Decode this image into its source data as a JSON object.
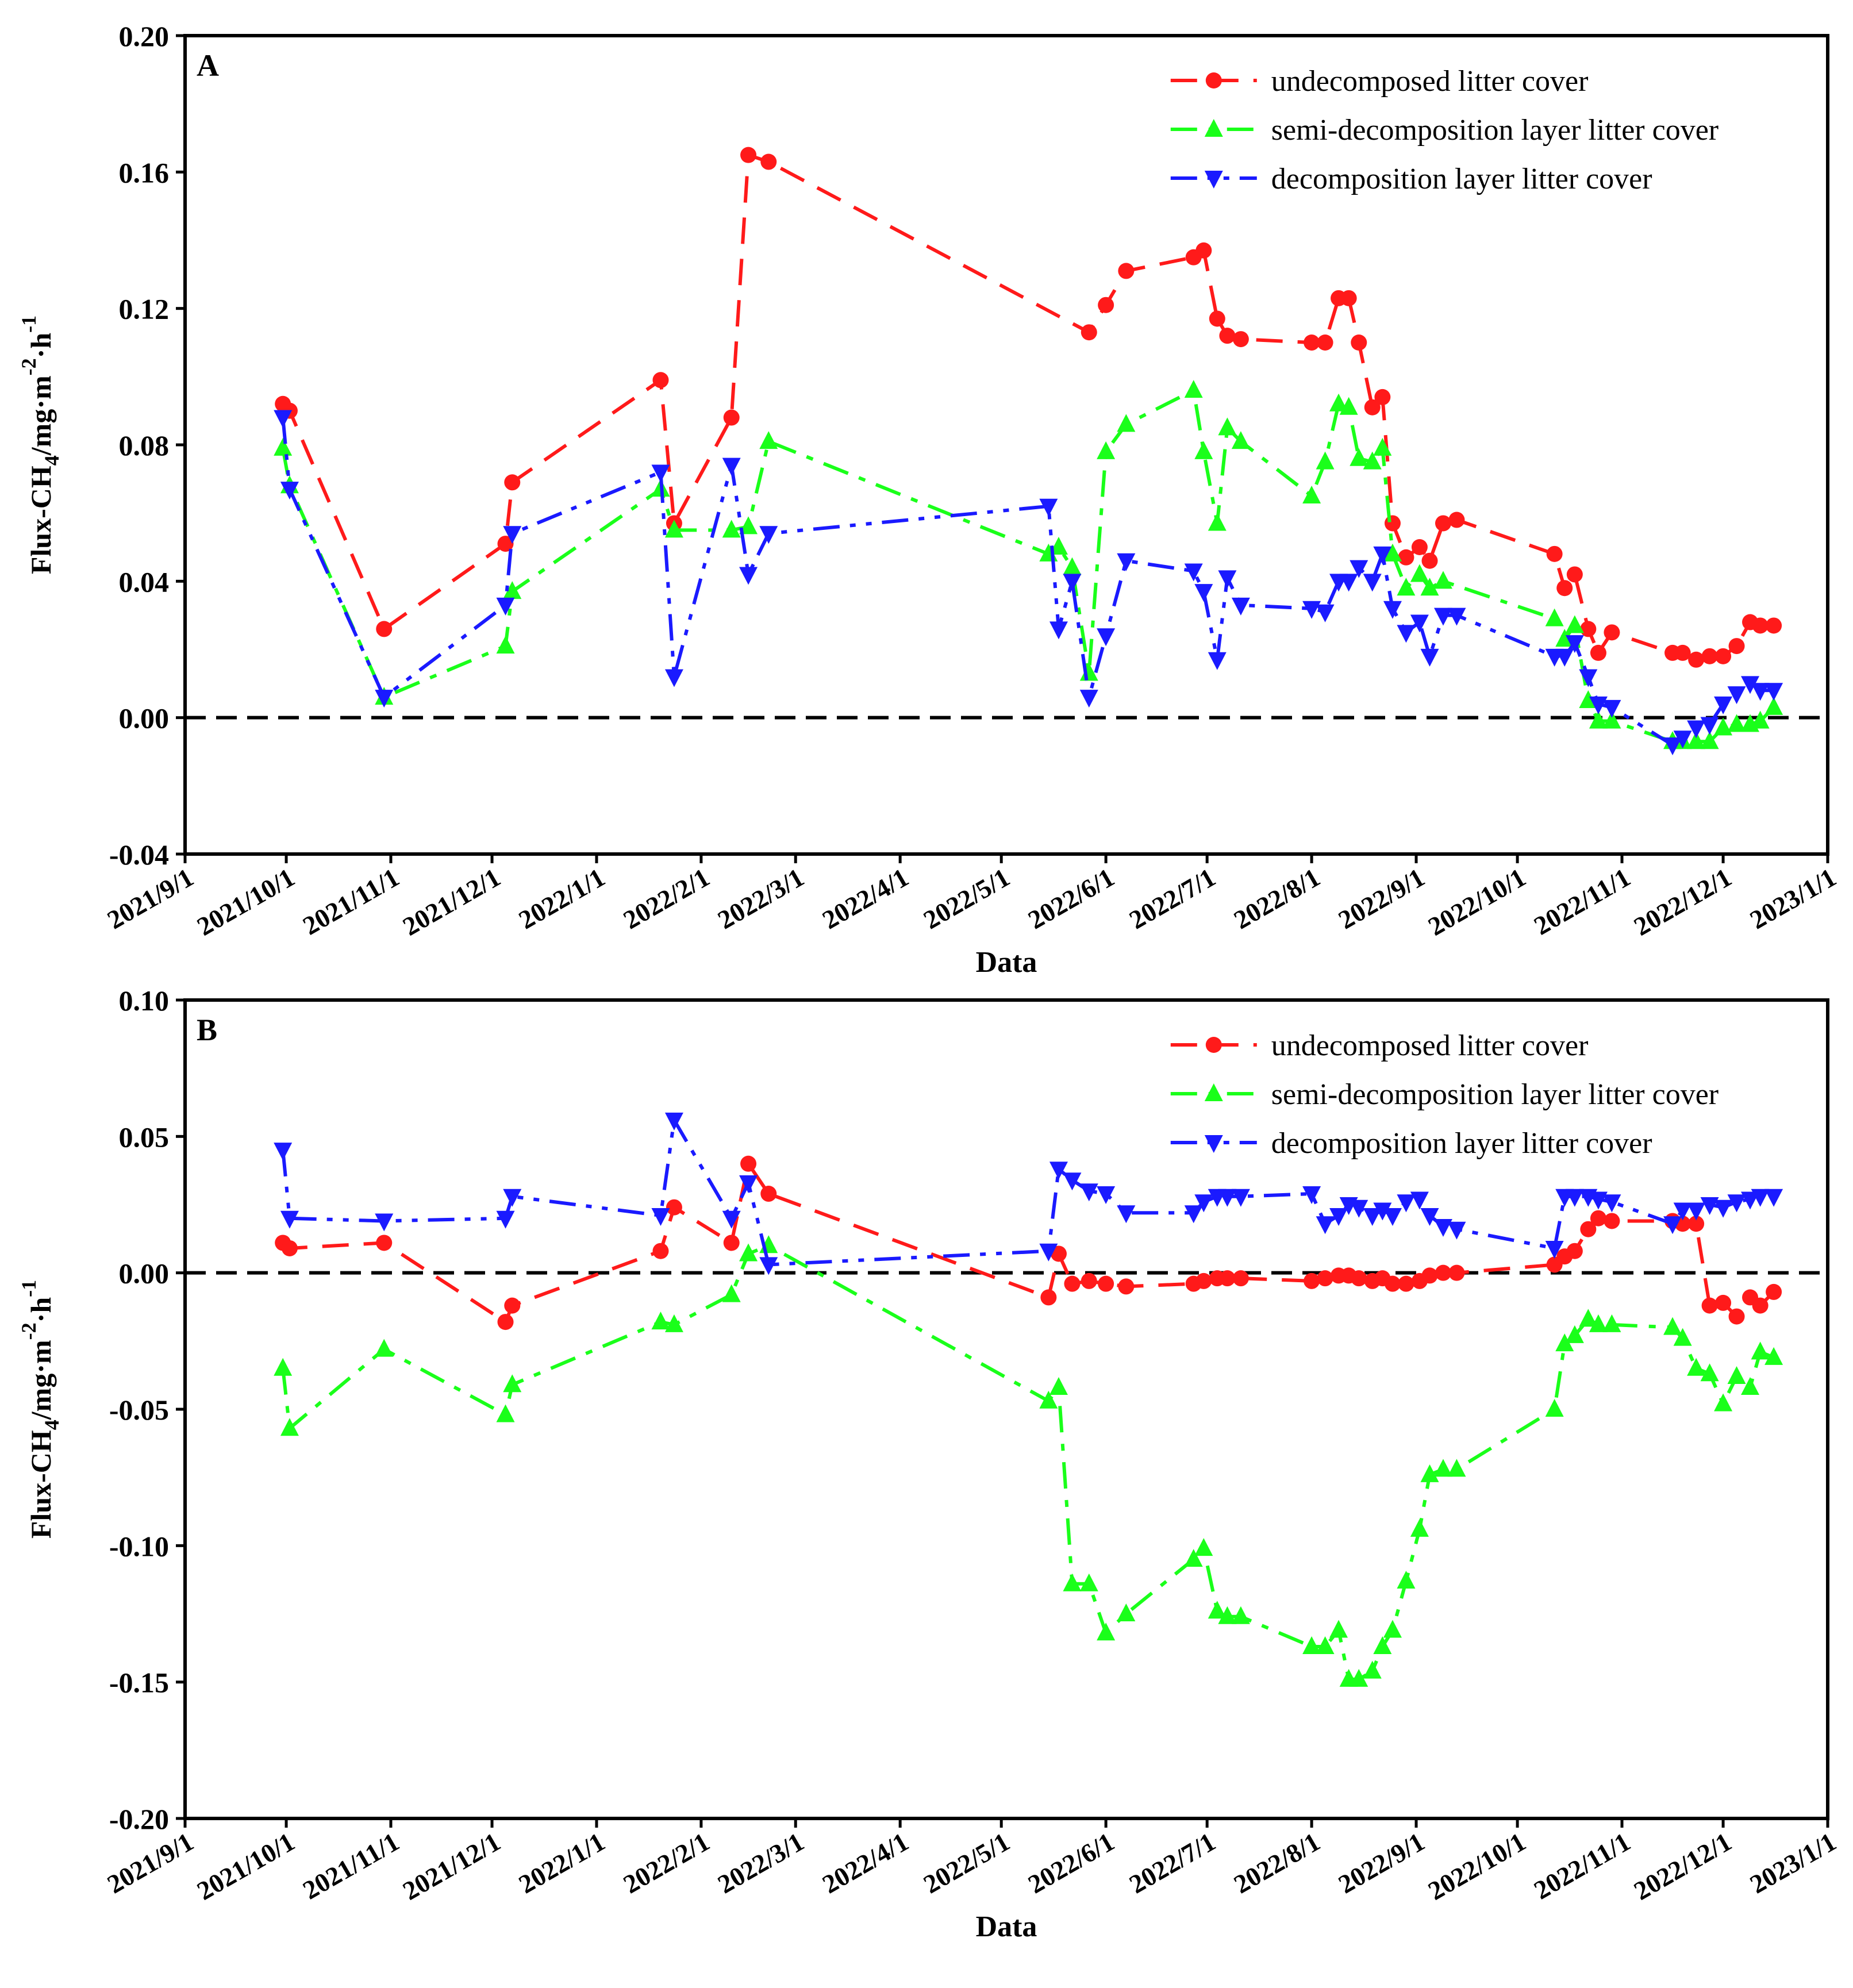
{
  "chart_data": [
    {
      "type": "line",
      "panel_label": "A",
      "xlabel": "Data",
      "ylabel": "Flux-CH4/mg·m-2·h-1",
      "ylabel_parts": {
        "prefix": "Flux-CH",
        "sub": "4",
        "mid": "/mg·m",
        "sup1": "-2",
        "dot": "·h",
        "sup2": "-1"
      },
      "ylim": [
        -0.04,
        0.2
      ],
      "yticks": [
        -0.04,
        0.0,
        0.04,
        0.08,
        0.12,
        0.16,
        0.2
      ],
      "ytick_labels": [
        "-0.04",
        "0.00",
        "0.04",
        "0.08",
        "0.12",
        "0.16",
        "0.20"
      ],
      "xlim": [
        "2021-09-01",
        "2023-01-01"
      ],
      "xticks": [
        "2021-09-01",
        "2021-10-01",
        "2021-11-01",
        "2021-12-01",
        "2022-01-01",
        "2022-02-01",
        "2022-03-01",
        "2022-04-01",
        "2022-05-01",
        "2022-06-01",
        "2022-07-01",
        "2022-08-01",
        "2022-09-01",
        "2022-10-01",
        "2022-11-01",
        "2022-12-01",
        "2023-01-01"
      ],
      "xtick_labels": [
        "2021/9/1",
        "2021/10/1",
        "2021/11/1",
        "2021/12/1",
        "2022/1/1",
        "2022/2/1",
        "2022/3/1",
        "2022/4/1",
        "2022/5/1",
        "2022/6/1",
        "2022/7/1",
        "2022/8/1",
        "2022/9/1",
        "2022/10/1",
        "2022/11/1",
        "2022/12/1",
        "2023/1/1"
      ],
      "reference_line": 0,
      "legend": {
        "position": "top-right"
      },
      "series": [
        {
          "name": "undecomposed litter cover",
          "color": "#ff1a1a",
          "marker": "circle",
          "dash": "long-dash",
          "x": [
            "2021-09-30",
            "2021-10-02",
            "2021-10-30",
            "2021-12-05",
            "2021-12-07",
            "2022-01-20",
            "2022-01-24",
            "2022-02-10",
            "2022-02-15",
            "2022-02-21",
            "2022-05-27",
            "2022-06-01",
            "2022-06-07",
            "2022-06-27",
            "2022-06-30",
            "2022-07-04",
            "2022-07-07",
            "2022-07-11",
            "2022-08-01",
            "2022-08-05",
            "2022-08-09",
            "2022-08-12",
            "2022-08-15",
            "2022-08-19",
            "2022-08-22",
            "2022-08-25",
            "2022-08-29",
            "2022-09-02",
            "2022-09-05",
            "2022-09-09",
            "2022-09-13",
            "2022-10-12",
            "2022-10-15",
            "2022-10-18",
            "2022-10-22",
            "2022-10-25",
            "2022-10-29",
            "2022-11-16",
            "2022-11-19",
            "2022-11-23",
            "2022-11-27",
            "2022-12-01",
            "2022-12-05",
            "2022-12-09",
            "2022-12-12",
            "2022-12-16"
          ],
          "values": [
            0.092,
            0.09,
            0.026,
            0.051,
            0.069,
            0.099,
            0.057,
            0.088,
            0.165,
            0.163,
            0.113,
            0.121,
            0.131,
            0.135,
            0.137,
            0.117,
            0.112,
            0.111,
            0.11,
            0.11,
            0.123,
            0.123,
            0.11,
            0.091,
            0.094,
            0.057,
            0.047,
            0.05,
            0.046,
            0.057,
            0.058,
            0.048,
            0.038,
            0.042,
            0.026,
            0.019,
            0.025,
            0.019,
            0.019,
            0.017,
            0.018,
            0.018,
            0.021,
            0.028,
            0.027,
            0.027
          ]
        },
        {
          "name": "semi-decomposition layer litter cover",
          "color": "#1aff1a",
          "marker": "triangle-up",
          "dash": "dash-dot",
          "x": [
            "2021-09-30",
            "2021-10-02",
            "2021-10-30",
            "2021-12-05",
            "2021-12-07",
            "2022-01-20",
            "2022-01-24",
            "2022-02-10",
            "2022-02-15",
            "2022-02-21",
            "2022-05-15",
            "2022-05-18",
            "2022-05-22",
            "2022-05-27",
            "2022-06-01",
            "2022-06-07",
            "2022-06-27",
            "2022-06-30",
            "2022-07-04",
            "2022-07-07",
            "2022-07-11",
            "2022-08-01",
            "2022-08-05",
            "2022-08-09",
            "2022-08-12",
            "2022-08-15",
            "2022-08-19",
            "2022-08-22",
            "2022-08-25",
            "2022-08-29",
            "2022-09-02",
            "2022-09-05",
            "2022-09-09",
            "2022-10-12",
            "2022-10-15",
            "2022-10-18",
            "2022-10-22",
            "2022-10-25",
            "2022-10-29",
            "2022-11-16",
            "2022-11-19",
            "2022-11-23",
            "2022-11-27",
            "2022-12-01",
            "2022-12-05",
            "2022-12-09",
            "2022-12-12",
            "2022-12-16"
          ],
          "values": [
            0.079,
            0.068,
            0.006,
            0.021,
            0.037,
            0.067,
            0.055,
            0.055,
            0.056,
            0.081,
            0.048,
            0.05,
            0.044,
            0.013,
            0.078,
            0.086,
            0.096,
            0.078,
            0.057,
            0.085,
            0.081,
            0.065,
            0.075,
            0.092,
            0.091,
            0.076,
            0.075,
            0.079,
            0.048,
            0.038,
            0.042,
            0.038,
            0.04,
            0.029,
            0.023,
            0.027,
            0.005,
            -0.001,
            -0.001,
            -0.007,
            -0.007,
            -0.007,
            -0.007,
            -0.003,
            -0.002,
            -0.002,
            -0.001,
            0.003
          ]
        },
        {
          "name": "decomposition layer litter cover",
          "color": "#1a1aff",
          "marker": "triangle-down",
          "dash": "dash-dot-dot",
          "x": [
            "2021-09-30",
            "2021-10-02",
            "2021-10-30",
            "2021-12-05",
            "2021-12-07",
            "2022-01-20",
            "2022-01-24",
            "2022-02-10",
            "2022-02-15",
            "2022-02-21",
            "2022-05-15",
            "2022-05-18",
            "2022-05-22",
            "2022-05-27",
            "2022-06-01",
            "2022-06-07",
            "2022-06-27",
            "2022-06-30",
            "2022-07-04",
            "2022-07-07",
            "2022-07-11",
            "2022-08-01",
            "2022-08-05",
            "2022-08-09",
            "2022-08-12",
            "2022-08-15",
            "2022-08-19",
            "2022-08-22",
            "2022-08-25",
            "2022-08-29",
            "2022-09-02",
            "2022-09-05",
            "2022-09-09",
            "2022-09-13",
            "2022-10-12",
            "2022-10-15",
            "2022-10-18",
            "2022-10-22",
            "2022-10-25",
            "2022-10-29",
            "2022-11-16",
            "2022-11-19",
            "2022-11-23",
            "2022-11-27",
            "2022-12-01",
            "2022-12-05",
            "2022-12-09",
            "2022-12-12",
            "2022-12-16"
          ],
          "values": [
            0.088,
            0.067,
            0.006,
            0.033,
            0.054,
            0.072,
            0.012,
            0.074,
            0.042,
            0.054,
            0.062,
            0.026,
            0.04,
            0.006,
            0.024,
            0.046,
            0.043,
            0.037,
            0.017,
            0.041,
            0.033,
            0.032,
            0.031,
            0.04,
            0.04,
            0.044,
            0.04,
            0.048,
            0.032,
            0.025,
            0.028,
            0.018,
            0.03,
            0.03,
            0.018,
            0.018,
            0.022,
            0.012,
            0.004,
            0.003,
            -0.008,
            -0.006,
            -0.003,
            -0.002,
            0.004,
            0.007,
            0.01,
            0.008,
            0.008
          ]
        }
      ]
    },
    {
      "type": "line",
      "panel_label": "B",
      "xlabel": "Data",
      "ylabel": "Flux-CH4/mg·m-2·h-1",
      "ylabel_parts": {
        "prefix": "Flux-CH",
        "sub": "4",
        "mid": "/mg·m",
        "sup1": "-2",
        "dot": "·h",
        "sup2": "-1"
      },
      "ylim": [
        -0.2,
        0.1
      ],
      "yticks": [
        -0.2,
        -0.15,
        -0.1,
        -0.05,
        0.0,
        0.05,
        0.1
      ],
      "ytick_labels": [
        "-0.20",
        "-0.15",
        "-0.10",
        "-0.05",
        "0.00",
        "0.05",
        "0.10"
      ],
      "xlim": [
        "2021-09-01",
        "2023-01-01"
      ],
      "xticks": [
        "2021-09-01",
        "2021-10-01",
        "2021-11-01",
        "2021-12-01",
        "2022-01-01",
        "2022-02-01",
        "2022-03-01",
        "2022-04-01",
        "2022-05-01",
        "2022-06-01",
        "2022-07-01",
        "2022-08-01",
        "2022-09-01",
        "2022-10-01",
        "2022-11-01",
        "2022-12-01",
        "2023-01-01"
      ],
      "xtick_labels": [
        "2021/9/1",
        "2021/10/1",
        "2021/11/1",
        "2021/12/1",
        "2022/1/1",
        "2022/2/1",
        "2022/3/1",
        "2022/4/1",
        "2022/5/1",
        "2022/6/1",
        "2022/7/1",
        "2022/8/1",
        "2022/9/1",
        "2022/10/1",
        "2022/11/1",
        "2022/12/1",
        "2023/1/1"
      ],
      "reference_line": 0,
      "legend": {
        "position": "top-right"
      },
      "series": [
        {
          "name": "undecomposed litter cover",
          "color": "#ff1a1a",
          "marker": "circle",
          "dash": "long-dash",
          "x": [
            "2021-09-30",
            "2021-10-02",
            "2021-10-30",
            "2021-12-05",
            "2021-12-07",
            "2022-01-20",
            "2022-01-24",
            "2022-02-10",
            "2022-02-15",
            "2022-02-21",
            "2022-05-15",
            "2022-05-18",
            "2022-05-22",
            "2022-05-27",
            "2022-06-01",
            "2022-06-07",
            "2022-06-27",
            "2022-06-30",
            "2022-07-04",
            "2022-07-07",
            "2022-07-11",
            "2022-08-01",
            "2022-08-05",
            "2022-08-09",
            "2022-08-12",
            "2022-08-15",
            "2022-08-19",
            "2022-08-22",
            "2022-08-25",
            "2022-08-29",
            "2022-09-02",
            "2022-09-05",
            "2022-09-09",
            "2022-09-13",
            "2022-10-12",
            "2022-10-15",
            "2022-10-18",
            "2022-10-22",
            "2022-10-25",
            "2022-10-29",
            "2022-11-16",
            "2022-11-19",
            "2022-11-23",
            "2022-11-27",
            "2022-12-01",
            "2022-12-05",
            "2022-12-09",
            "2022-12-12",
            "2022-12-16"
          ],
          "values": [
            0.011,
            0.009,
            0.011,
            -0.018,
            -0.012,
            0.008,
            0.024,
            0.011,
            0.04,
            0.029,
            -0.009,
            0.007,
            -0.004,
            -0.003,
            -0.004,
            -0.005,
            -0.004,
            -0.003,
            -0.002,
            -0.002,
            -0.002,
            -0.003,
            -0.002,
            -0.001,
            -0.001,
            -0.002,
            -0.003,
            -0.002,
            -0.004,
            -0.004,
            -0.003,
            -0.001,
            0.0,
            0.0,
            0.003,
            0.006,
            0.008,
            0.016,
            0.02,
            0.019,
            0.019,
            0.018,
            0.018,
            -0.012,
            -0.011,
            -0.016,
            -0.009,
            -0.012,
            -0.007
          ]
        },
        {
          "name": "semi-decomposition layer litter cover",
          "color": "#1aff1a",
          "marker": "triangle-up",
          "dash": "dash-dot",
          "x": [
            "2021-09-30",
            "2021-10-02",
            "2021-10-30",
            "2021-12-05",
            "2021-12-07",
            "2022-01-20",
            "2022-01-24",
            "2022-02-10",
            "2022-02-15",
            "2022-02-21",
            "2022-05-15",
            "2022-05-18",
            "2022-05-22",
            "2022-05-27",
            "2022-06-01",
            "2022-06-07",
            "2022-06-27",
            "2022-06-30",
            "2022-07-04",
            "2022-07-07",
            "2022-07-11",
            "2022-08-01",
            "2022-08-05",
            "2022-08-09",
            "2022-08-12",
            "2022-08-15",
            "2022-08-19",
            "2022-08-22",
            "2022-08-25",
            "2022-08-29",
            "2022-09-02",
            "2022-09-05",
            "2022-09-09",
            "2022-09-13",
            "2022-10-12",
            "2022-10-15",
            "2022-10-18",
            "2022-10-22",
            "2022-10-25",
            "2022-10-29",
            "2022-11-16",
            "2022-11-19",
            "2022-11-23",
            "2022-11-27",
            "2022-12-01",
            "2022-12-05",
            "2022-12-09",
            "2022-12-12",
            "2022-12-16"
          ],
          "values": [
            -0.035,
            -0.057,
            -0.028,
            -0.052,
            -0.041,
            -0.018,
            -0.019,
            -0.008,
            0.007,
            0.01,
            -0.047,
            -0.042,
            -0.114,
            -0.114,
            -0.132,
            -0.125,
            -0.105,
            -0.101,
            -0.124,
            -0.126,
            -0.126,
            -0.137,
            -0.137,
            -0.131,
            -0.149,
            -0.149,
            -0.146,
            -0.137,
            -0.131,
            -0.113,
            -0.094,
            -0.074,
            -0.072,
            -0.072,
            -0.05,
            -0.026,
            -0.023,
            -0.017,
            -0.019,
            -0.019,
            -0.02,
            -0.024,
            -0.035,
            -0.037,
            -0.048,
            -0.038,
            -0.042,
            -0.029,
            -0.031
          ]
        },
        {
          "name": "decomposition layer litter cover",
          "color": "#1a1aff",
          "marker": "triangle-down",
          "dash": "dash-dot-dot",
          "x": [
            "2021-09-30",
            "2021-10-02",
            "2021-10-30",
            "2021-12-05",
            "2021-12-07",
            "2022-01-20",
            "2022-01-24",
            "2022-02-10",
            "2022-02-15",
            "2022-02-21",
            "2022-05-15",
            "2022-05-18",
            "2022-05-22",
            "2022-05-27",
            "2022-06-01",
            "2022-06-07",
            "2022-06-27",
            "2022-06-30",
            "2022-07-04",
            "2022-07-07",
            "2022-07-11",
            "2022-08-01",
            "2022-08-05",
            "2022-08-09",
            "2022-08-12",
            "2022-08-15",
            "2022-08-19",
            "2022-08-22",
            "2022-08-25",
            "2022-08-29",
            "2022-09-02",
            "2022-09-05",
            "2022-09-09",
            "2022-09-13",
            "2022-10-12",
            "2022-10-15",
            "2022-10-18",
            "2022-10-22",
            "2022-10-25",
            "2022-10-29",
            "2022-11-16",
            "2022-11-19",
            "2022-11-23",
            "2022-11-27",
            "2022-12-01",
            "2022-12-05",
            "2022-12-09",
            "2022-12-12",
            "2022-12-16"
          ],
          "values": [
            0.045,
            0.02,
            0.019,
            0.02,
            0.028,
            0.021,
            0.056,
            0.02,
            0.033,
            0.003,
            0.008,
            0.038,
            0.034,
            0.03,
            0.029,
            0.022,
            0.022,
            0.026,
            0.028,
            0.028,
            0.028,
            0.029,
            0.018,
            0.021,
            0.025,
            0.024,
            0.021,
            0.023,
            0.021,
            0.026,
            0.027,
            0.021,
            0.017,
            0.016,
            0.009,
            0.028,
            0.028,
            0.028,
            0.027,
            0.026,
            0.018,
            0.023,
            0.023,
            0.025,
            0.024,
            0.026,
            0.027,
            0.028,
            0.028
          ]
        }
      ]
    }
  ]
}
